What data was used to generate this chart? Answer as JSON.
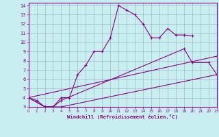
{
  "bg_color": "#c8eef0",
  "grid_color": "#a0b8c8",
  "line_color": "#880088",
  "marker_color": "#880088",
  "xlabel": "Windchill (Refroidissement éolien,°C)",
  "xlim": [
    0,
    23
  ],
  "ylim": [
    3,
    14.3
  ],
  "yticks": [
    3,
    4,
    5,
    6,
    7,
    8,
    9,
    10,
    11,
    12,
    13,
    14
  ],
  "xticks": [
    0,
    1,
    2,
    3,
    4,
    5,
    6,
    7,
    8,
    9,
    10,
    11,
    12,
    13,
    14,
    15,
    16,
    17,
    18,
    19,
    20,
    21,
    22,
    23
  ],
  "line1_x": [
    0,
    1,
    2,
    3,
    4,
    5,
    6,
    7,
    8,
    9,
    10,
    11,
    12,
    13,
    14,
    15,
    16,
    17,
    18,
    19,
    20
  ],
  "line1_y": [
    4.0,
    3.7,
    3.0,
    3.0,
    4.0,
    4.0,
    6.5,
    7.5,
    9.0,
    9.0,
    10.5,
    14.0,
    13.5,
    13.0,
    12.0,
    10.5,
    10.5,
    11.5,
    10.8,
    10.8,
    10.7
  ],
  "line2_x": [
    0,
    2,
    3,
    4,
    23
  ],
  "line2_y": [
    4.0,
    3.0,
    3.0,
    3.0,
    6.5
  ],
  "line3_x": [
    0,
    2,
    3,
    4,
    19,
    20,
    22,
    23
  ],
  "line3_y": [
    4.0,
    3.0,
    3.0,
    3.7,
    9.3,
    7.8,
    7.8,
    6.5
  ],
  "line4_x": [
    0,
    23
  ],
  "line4_y": [
    4.0,
    8.5
  ]
}
